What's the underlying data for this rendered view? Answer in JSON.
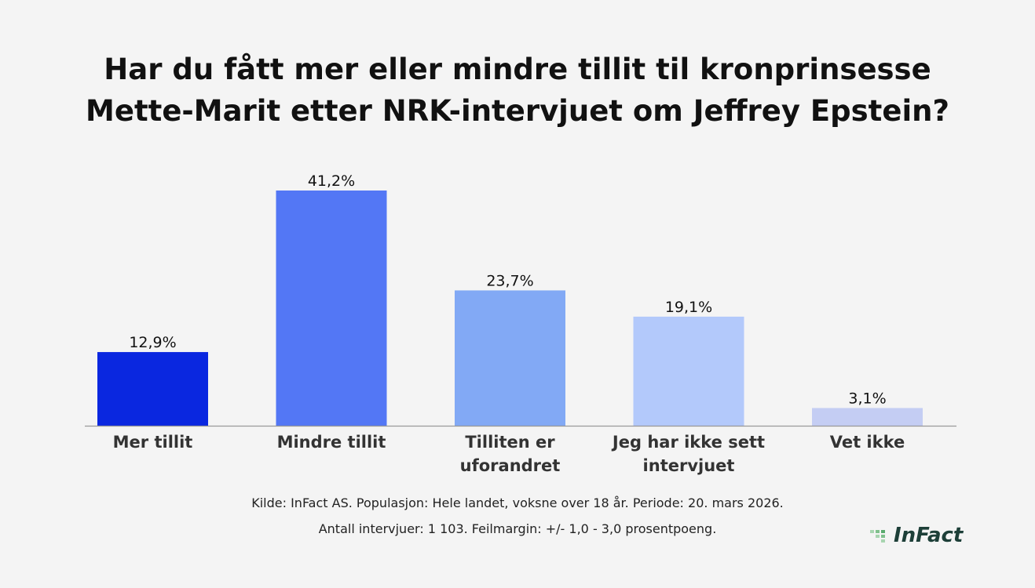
{
  "chart_data": {
    "type": "bar",
    "title": [
      "Har du fått mer eller mindre tillit til kronprinsesse",
      "Mette-Marit etter NRK-intervjuet om Jeffrey Epstein?"
    ],
    "categories": [
      [
        "Mer tillit"
      ],
      [
        "Mindre tillit"
      ],
      [
        "Tilliten er",
        "uforandret"
      ],
      [
        "Jeg har ikke sett",
        "intervjuet"
      ],
      [
        "Vet ikke"
      ]
    ],
    "values": [
      12.9,
      41.2,
      23.7,
      19.1,
      3.1
    ],
    "data_labels": [
      "12,9%",
      "41,2%",
      "23,7%",
      "19,1%",
      "3,1%"
    ],
    "colors": [
      "#0a27e0",
      "#5377f5",
      "#82a9f5",
      "#b3c9fb",
      "#c4cdf3"
    ],
    "xlabel": "",
    "ylabel": "",
    "grid": false,
    "legend": "none"
  },
  "footer": {
    "line1": "Kilde: InFact AS. Populasjon: Hele landet, voksne over 18 år. Periode: 20. mars 2026.",
    "line2": "Antall intervjuer: 1 103. Feilmargin: +/- 1,0 - 3,0 prosentpoeng."
  },
  "logo": {
    "text": "InFact",
    "color": "#1d3f38",
    "accent": "#5aaa6e"
  }
}
